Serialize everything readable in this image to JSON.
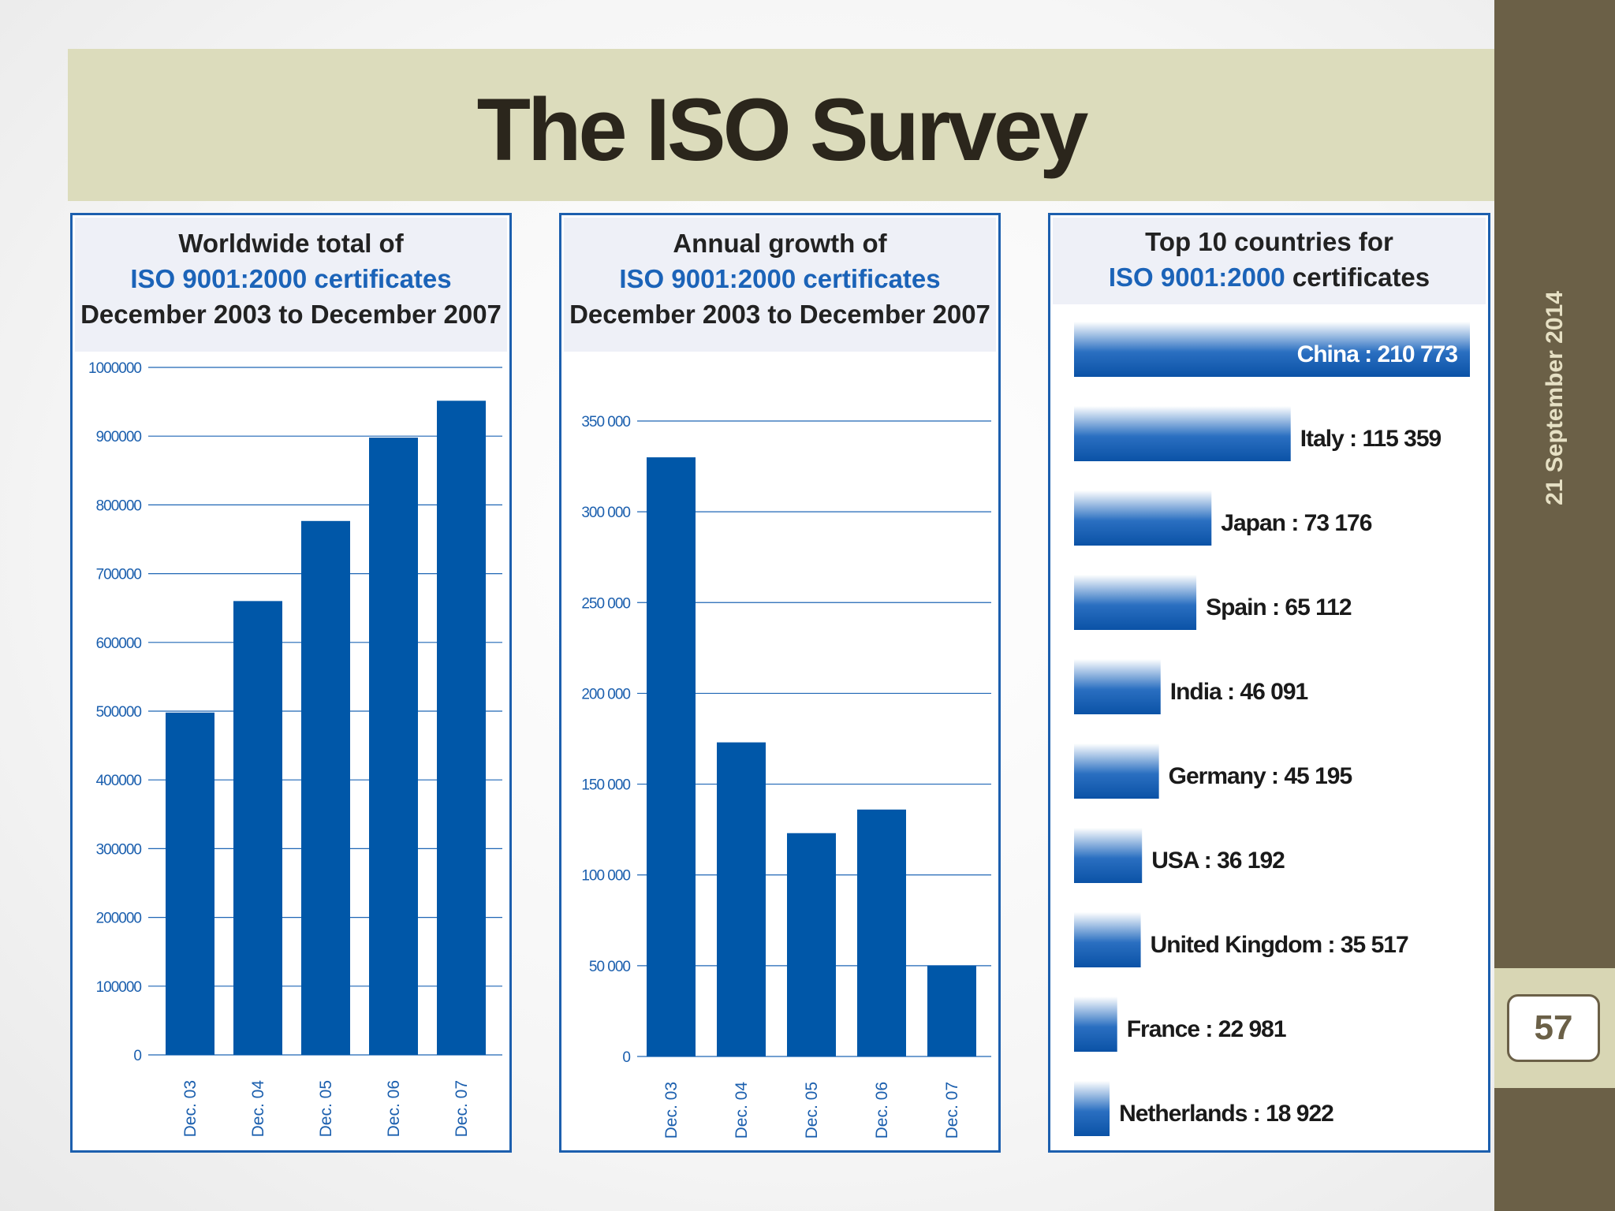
{
  "slide": {
    "title": "The ISO Survey",
    "date": "21 September 2014",
    "page_number": "57"
  },
  "colors": {
    "bar": "#0057a8",
    "sidebar": "#6b6047",
    "title_band": "#dcdcbc",
    "accent_blue": "#1b63b8"
  },
  "panels": [
    {
      "line1": "Worldwide total of",
      "line2": "ISO 9001:2000 certificates",
      "line3": "December 2003 to December 2007"
    },
    {
      "line1": "Annual growth of",
      "line2": "ISO 9001:2000 certificates",
      "line3": "December 2003 to December 2007"
    },
    {
      "line1": "Top 10 countries for",
      "line2": "ISO 9001:2000",
      "line2b": " certificates"
    }
  ],
  "chart_data": [
    {
      "type": "bar",
      "categories": [
        "Dec. 03",
        "Dec. 04",
        "Dec. 05",
        "Dec. 06",
        "Dec. 07"
      ],
      "values": [
        497919,
        660132,
        776608,
        897866,
        951486
      ],
      "ylim": [
        0,
        1000000
      ],
      "yticks": [
        "0",
        "100000",
        "200000",
        "300000",
        "400000",
        "500000",
        "600000",
        "700000",
        "800000",
        "900000",
        "1000000"
      ],
      "grid": true
    },
    {
      "type": "bar",
      "categories": [
        "Dec. 03",
        "Dec. 04",
        "Dec. 05",
        "Dec. 06",
        "Dec. 07"
      ],
      "values": [
        330000,
        173000,
        123000,
        136000,
        50000
      ],
      "ylim": [
        0,
        350000
      ],
      "yticks": [
        "0",
        "50 000",
        "100 000",
        "150 000",
        "200 000",
        "250 000",
        "300 000",
        "350 000"
      ],
      "grid": true
    },
    {
      "type": "bar",
      "orientation": "horizontal",
      "categories": [
        "China",
        "Italy",
        "Japan",
        "Spain",
        "India",
        "Germany",
        "USA",
        "United Kingdom",
        "France",
        "Netherlands"
      ],
      "values": [
        210773,
        115359,
        73176,
        65112,
        46091,
        45195,
        36192,
        35517,
        22981,
        18922
      ],
      "labels": [
        "China : 210 773",
        "Italy : 115 359",
        "Japan : 73 176",
        "Spain : 65 112",
        "India : 46 091",
        "Germany : 45 195",
        "USA : 36 192",
        "United Kingdom : 35 517",
        "France : 22 981",
        "Netherlands : 18 922"
      ]
    }
  ]
}
